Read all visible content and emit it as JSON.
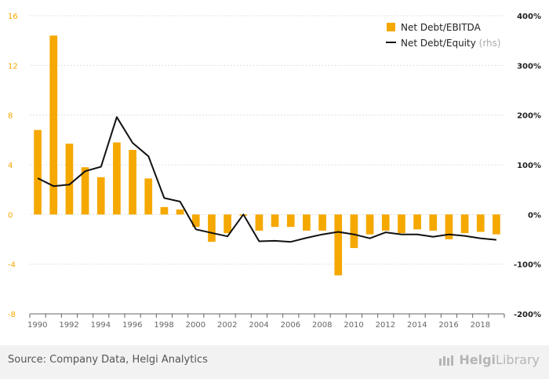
{
  "chart_data": {
    "type": "bar",
    "x": [
      1990,
      1991,
      1992,
      1993,
      1994,
      1995,
      1996,
      1997,
      1998,
      1999,
      2000,
      2001,
      2002,
      2003,
      2004,
      2005,
      2006,
      2007,
      2008,
      2009,
      2010,
      2011,
      2012,
      2013,
      2014,
      2015,
      2016,
      2017,
      2018,
      2019
    ],
    "series": [
      {
        "name": "Net Debt/EBITDA",
        "type": "bar",
        "axis": "left",
        "color": "#f5a800",
        "values": [
          6.8,
          14.4,
          5.7,
          3.8,
          3.0,
          5.8,
          5.2,
          2.9,
          0.6,
          0.4,
          -1.0,
          -2.2,
          -1.5,
          -0.1,
          -1.3,
          -1.0,
          -1.0,
          -1.3,
          -1.3,
          -4.9,
          -2.7,
          -1.6,
          -1.3,
          -1.5,
          -1.2,
          -1.3,
          -2.0,
          -1.5,
          -1.4,
          -1.6
        ]
      },
      {
        "name": "Net Debt/Equity",
        "name_note": "(rhs)",
        "type": "line",
        "axis": "right",
        "color": "#111111",
        "values": [
          73,
          57,
          60,
          87,
          96,
          196,
          144,
          117,
          33,
          26,
          -30,
          -37,
          -44,
          0,
          -54,
          -53,
          -55,
          -47,
          -40,
          -35,
          -40,
          -48,
          -36,
          -40,
          -40,
          -45,
          -40,
          -43,
          -48,
          -51
        ]
      }
    ],
    "ylim_left": [
      -8,
      16
    ],
    "yticks_left": [
      -8,
      -4,
      0,
      4,
      8,
      12,
      16
    ],
    "ylim_right": [
      -200,
      400
    ],
    "yticks_right": [
      "-200%",
      "-100%",
      "0%",
      "100%",
      "200%",
      "300%",
      "400%"
    ],
    "xticks": [
      1990,
      1992,
      1994,
      1996,
      1998,
      2000,
      2002,
      2004,
      2006,
      2008,
      2010,
      2012,
      2014,
      2016,
      2018
    ],
    "grid": "horizontal",
    "legend_position": "top-right"
  },
  "footer": {
    "source": "Source: Company Data, Helgi Analytics",
    "brand_helgi": "Helgi",
    "brand_library": "Library"
  }
}
